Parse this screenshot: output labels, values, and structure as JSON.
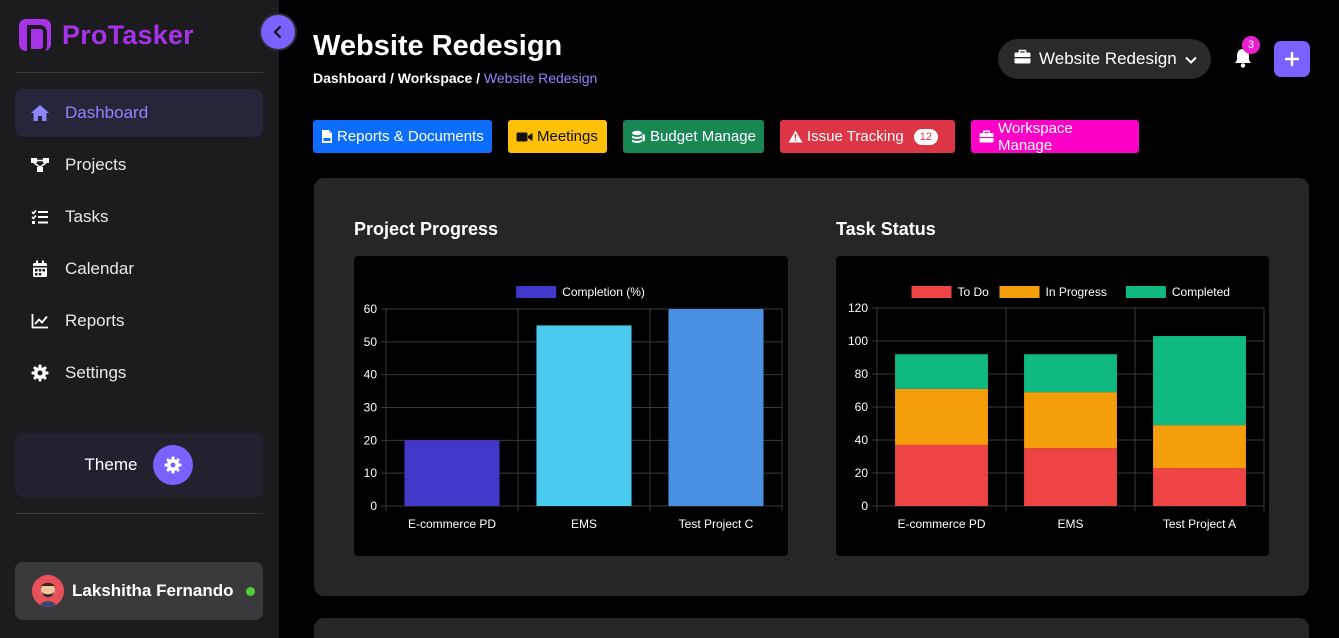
{
  "app": {
    "name": "ProTasker"
  },
  "sidebar": {
    "items": [
      {
        "label": "Dashboard",
        "icon": "home-icon",
        "active": true
      },
      {
        "label": "Projects",
        "icon": "sitemap-icon"
      },
      {
        "label": "Tasks",
        "icon": "tasks-icon"
      },
      {
        "label": "Calendar",
        "icon": "calendar-icon"
      },
      {
        "label": "Reports",
        "icon": "chart-line-icon"
      },
      {
        "label": "Settings",
        "icon": "gear-icon"
      }
    ],
    "theme_label": "Theme",
    "user_name": "Lakshitha Fernando"
  },
  "header": {
    "title": "Website Redesign",
    "breadcrumb": {
      "part1": "Dashboard / Workspace / ",
      "current": "Website Redesign"
    },
    "workspace_select": "Website Redesign",
    "notification_count": "3"
  },
  "quick_buttons": [
    {
      "label": "Reports & Documents",
      "color": "#0d6efd",
      "icon": "file-pdf-icon"
    },
    {
      "label": "Meetings",
      "color": "#ffc107",
      "icon": "video-icon"
    },
    {
      "label": "Budget Manage",
      "color": "#198754",
      "icon": "coins-icon"
    },
    {
      "label": "Issue Tracking",
      "color": "#dc3545",
      "icon": "warning-icon",
      "count": "12"
    },
    {
      "label": "Workspace Manage",
      "color": "#ff00c8",
      "icon": "briefcase-icon"
    }
  ],
  "chart_data": [
    {
      "type": "bar",
      "title": "Project Progress",
      "categories": [
        "E-commerce PD",
        "EMS",
        "Test Project C"
      ],
      "series": [
        {
          "name": "Completion (%)",
          "values": [
            20,
            55,
            60
          ]
        }
      ],
      "bar_colors": [
        "#4338ca",
        "#48cbee",
        "#4a90e2"
      ],
      "legend_color": "#4338ca",
      "ylim": [
        0,
        60
      ],
      "yticks": [
        0,
        10,
        20,
        30,
        40,
        50,
        60
      ],
      "legend": "top",
      "grid": true
    },
    {
      "type": "bar",
      "stacked": true,
      "title": "Task Status",
      "categories": [
        "E-commerce PD",
        "EMS",
        "Test Project A"
      ],
      "series": [
        {
          "name": "To Do",
          "values": [
            37,
            35,
            23
          ],
          "color": "#ef4444"
        },
        {
          "name": "In Progress",
          "values": [
            34,
            34,
            26
          ],
          "color": "#f59e0b"
        },
        {
          "name": "Completed",
          "values": [
            21,
            23,
            54
          ],
          "color": "#10b981"
        }
      ],
      "ylim": [
        0,
        120
      ],
      "yticks": [
        0,
        20,
        40,
        60,
        80,
        100,
        120
      ],
      "legend": "top",
      "grid": true
    }
  ]
}
